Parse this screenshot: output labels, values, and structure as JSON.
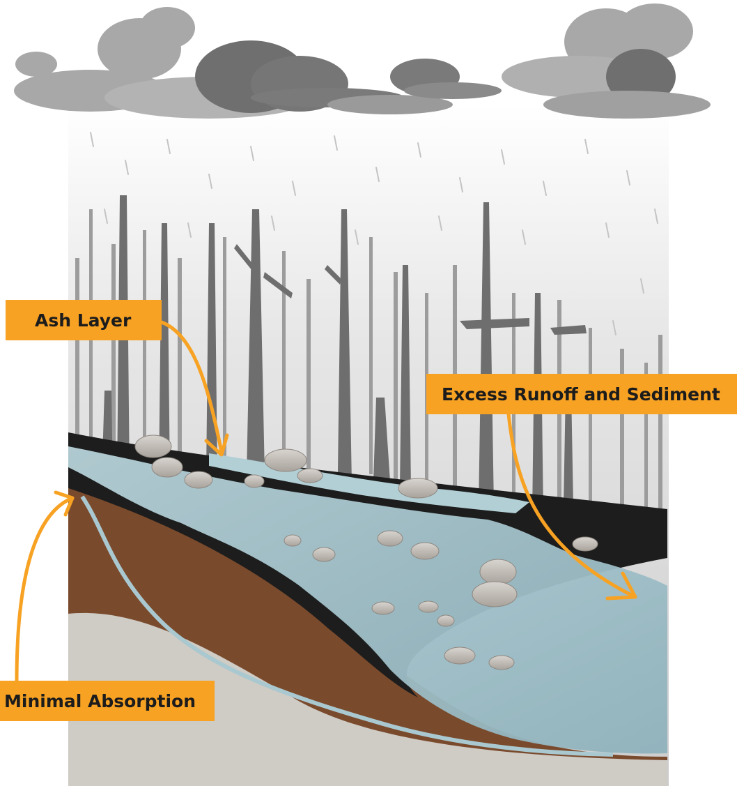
{
  "labels": {
    "ash_layer": "Ash Layer",
    "excess_runoff": "Excess Runoff and Sediment",
    "minimal_absorption": "Minimal Absorption"
  },
  "colors": {
    "label_fill": "#f7a223",
    "arrow": "#f7a223",
    "label_text": "#1c1c1c",
    "ash": "#1d1d1d",
    "soil": "#7a4a2c",
    "water": "#a9c8d0",
    "bedrock": "#cfcbc5",
    "cloud_dark": "#6f6f6f",
    "cloud_light": "#a8a8a8",
    "trees": "#777777"
  }
}
